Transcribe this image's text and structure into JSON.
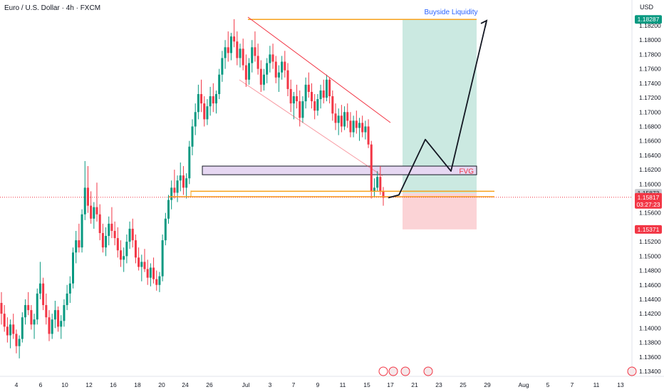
{
  "header": {
    "title": "Euro / U.S. Dollar · 4h · FXCM"
  },
  "axis": {
    "currency_label": "USD"
  },
  "chart_data": {
    "type": "candlestick",
    "title": "Euro / U.S. Dollar · 4h · FXCM",
    "y_ticks": [
      "1.13400",
      "1.13600",
      "1.13800",
      "1.14000",
      "1.14200",
      "1.14400",
      "1.14600",
      "1.14800",
      "1.15000",
      "1.15200",
      "1.15400",
      "1.15600",
      "1.15800",
      "1.16000",
      "1.16200",
      "1.16400",
      "1.16600",
      "1.16800",
      "1.17000",
      "1.17200",
      "1.17400",
      "1.17600",
      "1.17800",
      "1.18000",
      "1.18200"
    ],
    "ylim": [
      1.1333,
      1.1845
    ],
    "x_ticks": [
      "4",
      "6",
      "10",
      "12",
      "16",
      "18",
      "20",
      "24",
      "26",
      "Jul",
      "3",
      "7",
      "9",
      "11",
      "15",
      "17",
      "21",
      "23",
      "25",
      "29",
      "Aug",
      "5",
      "7",
      "11",
      "13"
    ],
    "ohlc": [
      [
        1.1435,
        1.145,
        1.1405,
        1.142
      ],
      [
        1.142,
        1.1432,
        1.1395,
        1.1402
      ],
      [
        1.1402,
        1.1415,
        1.138,
        1.139
      ],
      [
        1.139,
        1.1412,
        1.1372,
        1.1405
      ],
      [
        1.1405,
        1.142,
        1.1385,
        1.1392
      ],
      [
        1.1392,
        1.1398,
        1.1365,
        1.1375
      ],
      [
        1.1375,
        1.139,
        1.1358,
        1.1385
      ],
      [
        1.1385,
        1.1422,
        1.138,
        1.1415
      ],
      [
        1.1415,
        1.144,
        1.1405,
        1.1432
      ],
      [
        1.1432,
        1.145,
        1.1418,
        1.1425
      ],
      [
        1.1425,
        1.1432,
        1.1398,
        1.1405
      ],
      [
        1.1405,
        1.142,
        1.1385,
        1.1412
      ],
      [
        1.1412,
        1.1455,
        1.1405,
        1.1448
      ],
      [
        1.1448,
        1.1492,
        1.144,
        1.1462
      ],
      [
        1.1462,
        1.147,
        1.1425,
        1.1432
      ],
      [
        1.1432,
        1.1448,
        1.1405,
        1.1415
      ],
      [
        1.1415,
        1.1425,
        1.1382,
        1.1392
      ],
      [
        1.1392,
        1.142,
        1.1385,
        1.1412
      ],
      [
        1.1412,
        1.1438,
        1.14,
        1.1425
      ],
      [
        1.1425,
        1.143,
        1.1395,
        1.1402
      ],
      [
        1.1402,
        1.1418,
        1.1385,
        1.141
      ],
      [
        1.141,
        1.144,
        1.1402,
        1.1432
      ],
      [
        1.1432,
        1.146,
        1.1425,
        1.1448
      ],
      [
        1.1448,
        1.1472,
        1.1435,
        1.1462
      ],
      [
        1.1462,
        1.1512,
        1.1455,
        1.1505
      ],
      [
        1.1505,
        1.1535,
        1.149,
        1.1522
      ],
      [
        1.1522,
        1.1545,
        1.1505,
        1.1512
      ],
      [
        1.1512,
        1.1565,
        1.1505,
        1.1558
      ],
      [
        1.1558,
        1.1632,
        1.155,
        1.1595
      ],
      [
        1.1595,
        1.1625,
        1.156,
        1.157
      ],
      [
        1.157,
        1.159,
        1.1545,
        1.1552
      ],
      [
        1.1552,
        1.1575,
        1.1538,
        1.1568
      ],
      [
        1.1568,
        1.1602,
        1.1548,
        1.1558
      ],
      [
        1.1558,
        1.1572,
        1.1522,
        1.1532
      ],
      [
        1.1532,
        1.1545,
        1.1505,
        1.1512
      ],
      [
        1.1512,
        1.154,
        1.15,
        1.1528
      ],
      [
        1.1528,
        1.1555,
        1.1515,
        1.1545
      ],
      [
        1.1545,
        1.1568,
        1.1525,
        1.1535
      ],
      [
        1.1535,
        1.1548,
        1.1515,
        1.1525
      ],
      [
        1.1525,
        1.154,
        1.1498,
        1.1508
      ],
      [
        1.1508,
        1.1522,
        1.1485,
        1.1495
      ],
      [
        1.1495,
        1.1512,
        1.1478,
        1.15
      ],
      [
        1.15,
        1.153,
        1.149,
        1.152
      ],
      [
        1.152,
        1.1548,
        1.151,
        1.1538
      ],
      [
        1.1538,
        1.1552,
        1.1512,
        1.1522
      ],
      [
        1.1522,
        1.153,
        1.149,
        1.1498
      ],
      [
        1.1498,
        1.1512,
        1.148,
        1.1485
      ],
      [
        1.1485,
        1.1502,
        1.1465,
        1.1492
      ],
      [
        1.1492,
        1.151,
        1.1478,
        1.1482
      ],
      [
        1.1482,
        1.1495,
        1.146,
        1.147
      ],
      [
        1.147,
        1.149,
        1.1458,
        1.1484
      ],
      [
        1.1484,
        1.1498,
        1.1462,
        1.1468
      ],
      [
        1.1468,
        1.148,
        1.1452,
        1.146
      ],
      [
        1.146,
        1.1478,
        1.145,
        1.1472
      ],
      [
        1.1472,
        1.153,
        1.1465,
        1.1522
      ],
      [
        1.1522,
        1.156,
        1.1515,
        1.1552
      ],
      [
        1.1552,
        1.1585,
        1.1545,
        1.1578
      ],
      [
        1.1578,
        1.1605,
        1.1565,
        1.1595
      ],
      [
        1.1595,
        1.162,
        1.158,
        1.1588
      ],
      [
        1.1588,
        1.1612,
        1.1575,
        1.1605
      ],
      [
        1.1605,
        1.163,
        1.159,
        1.1612
      ],
      [
        1.1612,
        1.1625,
        1.1585,
        1.1595
      ],
      [
        1.1595,
        1.1615,
        1.158,
        1.1608
      ],
      [
        1.1608,
        1.166,
        1.16,
        1.1652
      ],
      [
        1.1652,
        1.169,
        1.164,
        1.168
      ],
      [
        1.168,
        1.1712,
        1.1668,
        1.17
      ],
      [
        1.17,
        1.1738,
        1.169,
        1.1725
      ],
      [
        1.1725,
        1.1745,
        1.17,
        1.1712
      ],
      [
        1.1712,
        1.1722,
        1.168,
        1.169
      ],
      [
        1.169,
        1.1718,
        1.1682,
        1.1708
      ],
      [
        1.1708,
        1.1735,
        1.1695,
        1.1722
      ],
      [
        1.1722,
        1.174,
        1.17,
        1.1712
      ],
      [
        1.1712,
        1.173,
        1.1698,
        1.1725
      ],
      [
        1.1725,
        1.176,
        1.1718,
        1.1752
      ],
      [
        1.1752,
        1.1785,
        1.1742,
        1.1775
      ],
      [
        1.1775,
        1.18,
        1.176,
        1.179
      ],
      [
        1.179,
        1.1812,
        1.177,
        1.1782
      ],
      [
        1.1782,
        1.181,
        1.1772,
        1.1805
      ],
      [
        1.1805,
        1.1829,
        1.179,
        1.1798
      ],
      [
        1.1798,
        1.1812,
        1.1765,
        1.1775
      ],
      [
        1.1775,
        1.1795,
        1.1762,
        1.1788
      ],
      [
        1.1788,
        1.1802,
        1.1758,
        1.1765
      ],
      [
        1.1765,
        1.178,
        1.1735,
        1.1745
      ],
      [
        1.1745,
        1.1775,
        1.1738,
        1.1768
      ],
      [
        1.1768,
        1.18,
        1.1755,
        1.179
      ],
      [
        1.179,
        1.1812,
        1.177,
        1.1778
      ],
      [
        1.1778,
        1.1795,
        1.1752,
        1.176
      ],
      [
        1.176,
        1.1772,
        1.1728,
        1.1738
      ],
      [
        1.1738,
        1.176,
        1.173,
        1.1752
      ],
      [
        1.1752,
        1.1775,
        1.174,
        1.1768
      ],
      [
        1.1768,
        1.1792,
        1.1755,
        1.178
      ],
      [
        1.178,
        1.1795,
        1.176,
        1.177
      ],
      [
        1.177,
        1.1778,
        1.174,
        1.1748
      ],
      [
        1.1748,
        1.1765,
        1.1728,
        1.1755
      ],
      [
        1.1755,
        1.1778,
        1.1745,
        1.177
      ],
      [
        1.177,
        1.1785,
        1.1748,
        1.1758
      ],
      [
        1.1758,
        1.1768,
        1.1722,
        1.1732
      ],
      [
        1.1732,
        1.1745,
        1.17,
        1.1712
      ],
      [
        1.1712,
        1.1728,
        1.169,
        1.1722
      ],
      [
        1.1722,
        1.1738,
        1.1705,
        1.1715
      ],
      [
        1.1715,
        1.173,
        1.168,
        1.1692
      ],
      [
        1.1692,
        1.1722,
        1.1685,
        1.1715
      ],
      [
        1.1715,
        1.1748,
        1.1705,
        1.1738
      ],
      [
        1.1738,
        1.1755,
        1.172,
        1.1728
      ],
      [
        1.1728,
        1.174,
        1.1705,
        1.1715
      ],
      [
        1.1715,
        1.1725,
        1.169,
        1.1702
      ],
      [
        1.1702,
        1.1725,
        1.1695,
        1.1718
      ],
      [
        1.1718,
        1.1738,
        1.1705,
        1.173
      ],
      [
        1.173,
        1.1745,
        1.1712,
        1.172
      ],
      [
        1.172,
        1.1752,
        1.1715,
        1.1745
      ],
      [
        1.1745,
        1.1748,
        1.1712,
        1.1722
      ],
      [
        1.1722,
        1.173,
        1.1688,
        1.1698
      ],
      [
        1.1698,
        1.1712,
        1.1675,
        1.1685
      ],
      [
        1.1685,
        1.1705,
        1.1668,
        1.1695
      ],
      [
        1.1695,
        1.171,
        1.1672,
        1.168
      ],
      [
        1.168,
        1.1708,
        1.1675,
        1.17
      ],
      [
        1.17,
        1.1712,
        1.1678,
        1.1688
      ],
      [
        1.1688,
        1.17,
        1.1665,
        1.1672
      ],
      [
        1.1672,
        1.1695,
        1.1665,
        1.1688
      ],
      [
        1.1688,
        1.1702,
        1.167,
        1.1678
      ],
      [
        1.1678,
        1.1692,
        1.166,
        1.1685
      ],
      [
        1.1685,
        1.1695,
        1.1665,
        1.1672
      ],
      [
        1.1672,
        1.1688,
        1.1662,
        1.168
      ],
      [
        1.168,
        1.169,
        1.165,
        1.1655
      ],
      [
        1.1655,
        1.166,
        1.158,
        1.159
      ],
      [
        1.159,
        1.1608,
        1.1582,
        1.1595
      ],
      [
        1.1595,
        1.1618,
        1.159,
        1.161
      ],
      [
        1.161,
        1.1625,
        1.1585,
        1.159
      ],
      [
        1.159,
        1.1596,
        1.157,
        1.1581
      ]
    ],
    "price_labels": {
      "target": "1.18287",
      "last_price": "1.15873",
      "current": "1.15817",
      "countdown": "03:27:23",
      "stop": "1.15371"
    },
    "annotations": {
      "buyside": "Buyside Liquidity",
      "fvg": "FVG"
    },
    "levels": {
      "top_line": 1.18287,
      "fvg_top": 1.1625,
      "fvg_bottom": 1.1613,
      "support_upper": 1.159,
      "support_lower": 1.15825,
      "entry": 1.15873,
      "stop": 1.15371,
      "target": 1.18287
    },
    "projected_path": [
      [
        1.1581,
        1.1585
      ],
      [
        1.1662,
        1.1618
      ],
      [
        1.1825,
        1.1825
      ]
    ],
    "colors": {
      "up": "#089981",
      "down": "#f23645",
      "channel": "#f23645",
      "level": "#f7a21b",
      "fvg_fill": "#e6d7f2",
      "profit_zone": "#cbe9e1",
      "loss_zone": "#fbd3d6",
      "target_badge": "#089981",
      "stop_badge": "#f23645",
      "buyside_text": "#2962ff"
    }
  }
}
